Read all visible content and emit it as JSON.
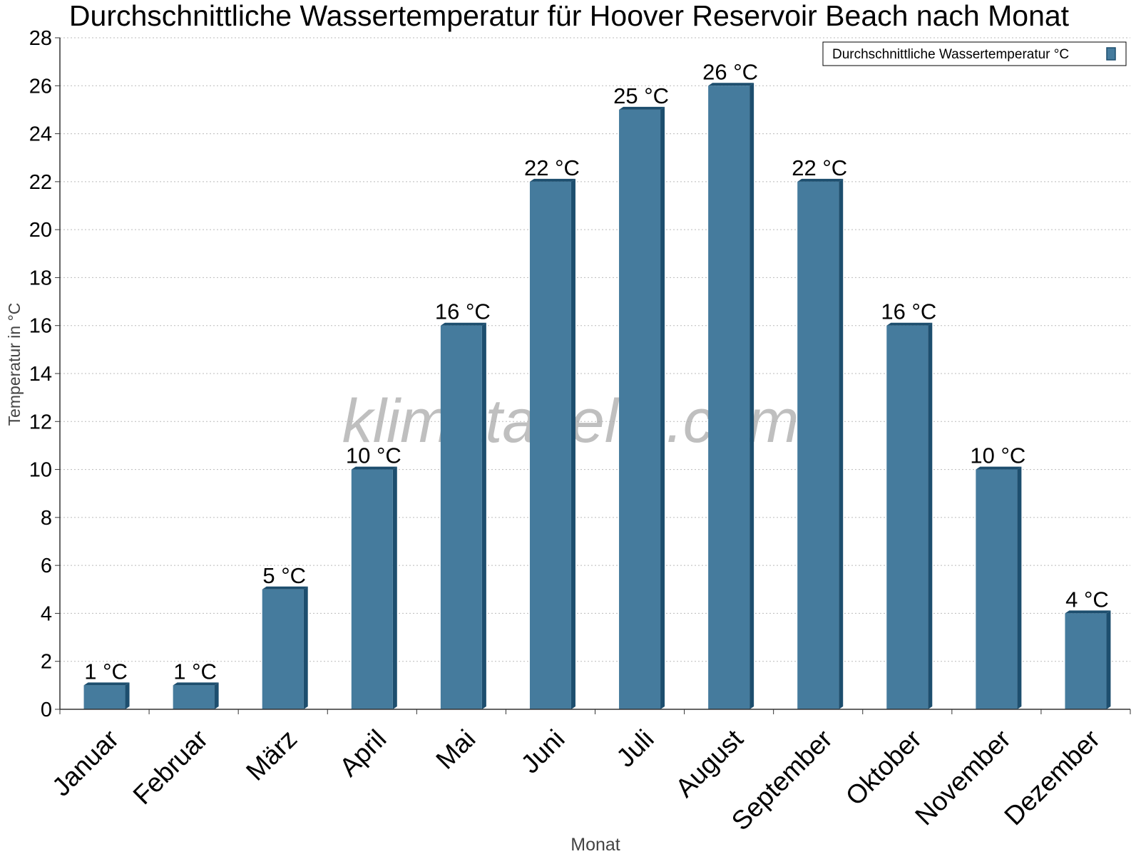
{
  "chart_data": {
    "type": "bar",
    "title": "Durchschnittliche Wassertemperatur für Hoover Reservoir Beach nach Monat",
    "xlabel": "Monat",
    "ylabel": "Temperatur in °C",
    "categories": [
      "Januar",
      "Februar",
      "März",
      "April",
      "Mai",
      "Juni",
      "Juli",
      "August",
      "September",
      "Oktober",
      "November",
      "Dezember"
    ],
    "series": [
      {
        "name": "Durchschnittliche Wassertemperatur °C",
        "values": [
          1,
          1,
          5,
          10,
          16,
          22,
          25,
          26,
          22,
          16,
          10,
          4
        ],
        "labels": [
          "1 °C",
          "1 °C",
          "5 °C",
          "10 °C",
          "16 °C",
          "22 °C",
          "25 °C",
          "26 °C",
          "22 °C",
          "16 °C",
          "10 °C",
          "4 °C"
        ]
      }
    ],
    "ylim": [
      0,
      28
    ],
    "yticks": [
      "0",
      "2",
      "4",
      "6",
      "8",
      "10",
      "12",
      "14",
      "16",
      "18",
      "20",
      "22",
      "24",
      "26",
      "28"
    ],
    "grid": true,
    "legend_position": "top-right",
    "watermark": "klimatabelle.com",
    "colors": {
      "bar_front": "#457b9d",
      "bar_side": "#1d4e6e",
      "bar_top": "#1d4e6e",
      "axis": "#333333",
      "grid": "#bbbbbb",
      "watermark": "#aaaaaa",
      "axis_title": "#444444"
    }
  }
}
